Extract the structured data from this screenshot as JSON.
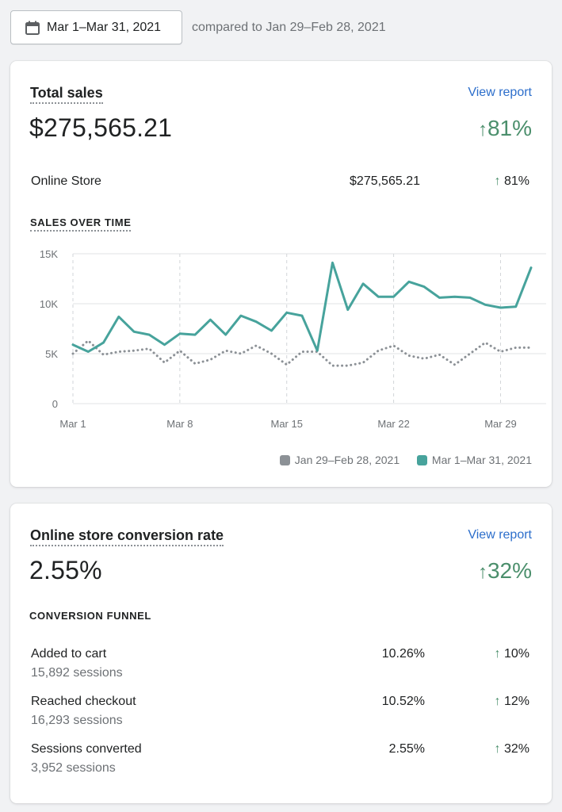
{
  "date_picker": {
    "icon": "calendar-icon",
    "label": "Mar 1–Mar 31, 2021",
    "compare_text": "compared to Jan 29–Feb 28, 2021"
  },
  "total_sales": {
    "title": "Total sales",
    "view_report": "View report",
    "value": "$275,565.21",
    "change_arrow": "↑",
    "change": "81%",
    "channel_row": {
      "label": "Online Store",
      "value": "$275,565.21",
      "arrow": "↑",
      "change": "81%"
    },
    "chart_label": "SALES OVER TIME"
  },
  "chart_data": {
    "type": "line",
    "title": "SALES OVER TIME",
    "xlabel": "",
    "ylabel": "",
    "ylim": [
      0,
      15000
    ],
    "yticks": [
      0,
      5000,
      10000,
      15000
    ],
    "ytick_labels": [
      "0",
      "5K",
      "10K",
      "15K"
    ],
    "x": [
      "Mar 1",
      "Mar 2",
      "Mar 3",
      "Mar 4",
      "Mar 5",
      "Mar 6",
      "Mar 7",
      "Mar 8",
      "Mar 9",
      "Mar 10",
      "Mar 11",
      "Mar 12",
      "Mar 13",
      "Mar 14",
      "Mar 15",
      "Mar 16",
      "Mar 17",
      "Mar 18",
      "Mar 19",
      "Mar 20",
      "Mar 21",
      "Mar 22",
      "Mar 23",
      "Mar 24",
      "Mar 25",
      "Mar 26",
      "Mar 27",
      "Mar 28",
      "Mar 29",
      "Mar 30",
      "Mar 31"
    ],
    "xtick_labels": [
      "Mar 1",
      "Mar 8",
      "Mar 15",
      "Mar 22",
      "Mar 29"
    ],
    "xtick_index": [
      0,
      7,
      14,
      21,
      28
    ],
    "grid": true,
    "legend_position": "bottom-right",
    "series": [
      {
        "name": "Jan 29–Feb 28, 2021",
        "color": "#8c9196",
        "style": "dotted",
        "values": [
          5000,
          6300,
          4900,
          5200,
          5300,
          5500,
          4100,
          5300,
          4000,
          4400,
          5300,
          5000,
          5800,
          5000,
          3900,
          5200,
          5200,
          3800,
          3800,
          4100,
          5300,
          5800,
          4800,
          4500,
          4900,
          3900,
          5000,
          6100,
          5200,
          5600,
          5600
        ]
      },
      {
        "name": "Mar 1–Mar 31, 2021",
        "color": "#47a39c",
        "style": "solid",
        "values": [
          5900,
          5200,
          6100,
          8700,
          7200,
          6900,
          5900,
          7000,
          6900,
          8400,
          6900,
          8800,
          8200,
          7300,
          9100,
          8800,
          5300,
          14100,
          9400,
          12000,
          10700,
          10700,
          12200,
          11700,
          10600,
          10700,
          10600,
          9900,
          9600,
          9700,
          13600
        ]
      }
    ]
  },
  "conversion": {
    "title": "Online store conversion rate",
    "view_report": "View report",
    "value": "2.55%",
    "change_arrow": "↑",
    "change": "32%",
    "funnel_label": "CONVERSION FUNNEL",
    "rows": [
      {
        "label": "Added to cart",
        "sessions": "15,892 sessions",
        "value": "10.26%",
        "arrow": "↑",
        "change": "10%"
      },
      {
        "label": "Reached checkout",
        "sessions": "16,293 sessions",
        "value": "10.52%",
        "arrow": "↑",
        "change": "12%"
      },
      {
        "label": "Sessions converted",
        "sessions": "3,952 sessions",
        "value": "2.55%",
        "arrow": "↑",
        "change": "32%"
      }
    ]
  }
}
